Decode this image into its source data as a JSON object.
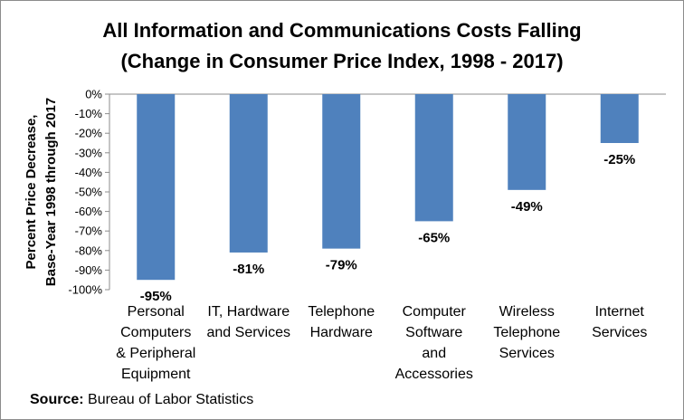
{
  "chart_data": {
    "type": "bar",
    "title": "All Information and Communications Costs Falling",
    "subtitle": "(Change in Consumer Price Index, 1998 - 2017)",
    "ylabel_lines": [
      "Percent Price Decrease,",
      "Base-Year 1998 through 2017"
    ],
    "xlabel": "",
    "categories": [
      "Personal Computers & Peripheral Equipment",
      "IT, Hardware and Services",
      "Telephone Hardware",
      "Computer Software and Accessories",
      "Wireless Telephone Services",
      "Internet Services"
    ],
    "category_lines": [
      [
        "Personal",
        "Computers",
        "& Peripheral",
        "Equipment"
      ],
      [
        "IT, Hardware",
        "and Services"
      ],
      [
        "Telephone",
        "Hardware"
      ],
      [
        "Computer",
        "Software",
        "and",
        "Accessories"
      ],
      [
        "Wireless",
        "Telephone",
        "Services"
      ],
      [
        "Internet",
        "Services"
      ]
    ],
    "values": [
      -95,
      -81,
      -79,
      -65,
      -49,
      -25
    ],
    "data_labels": [
      "-95%",
      "-81%",
      "-79%",
      "-65%",
      "-49%",
      "-25%"
    ],
    "ylim": [
      -100,
      0
    ],
    "yticks": [
      0,
      -10,
      -20,
      -30,
      -40,
      -50,
      -60,
      -70,
      -80,
      -90,
      -100
    ],
    "ytick_labels": [
      "0%",
      "-10%",
      "-20%",
      "-30%",
      "-40%",
      "-50%",
      "-60%",
      "-70%",
      "-80%",
      "-90%",
      "-100%"
    ],
    "bar_color": "#4f81bd",
    "grid": false,
    "legend": "none"
  },
  "source": {
    "label": "Source:",
    "text": " Bureau of Labor Statistics"
  }
}
